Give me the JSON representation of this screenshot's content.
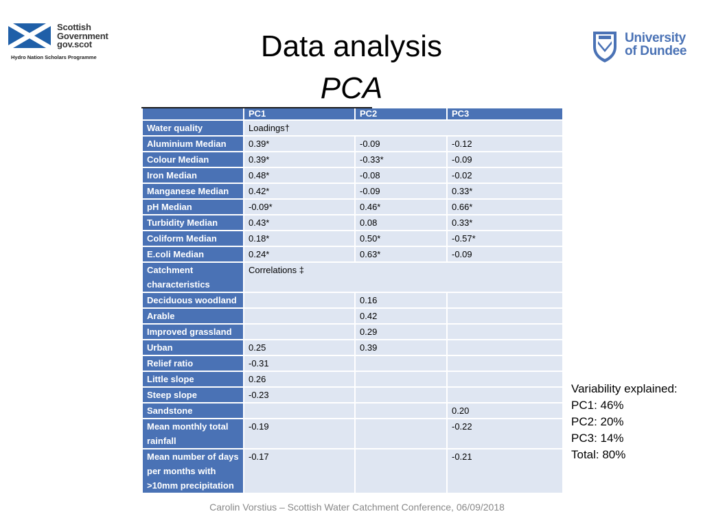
{
  "logos": {
    "left": {
      "lines": [
        "Scottish",
        "Government",
        "gov.scot"
      ],
      "programme": "Hydro Nation Scholars Programme"
    },
    "right": {
      "lines": [
        "University",
        "of Dundee"
      ]
    }
  },
  "title": {
    "main": "Data analysis",
    "sub": "PCA"
  },
  "table": {
    "header": [
      "",
      "PC1",
      "PC2",
      "PC3"
    ],
    "rows": [
      {
        "label": "Water quality",
        "span": "Loadings†"
      },
      {
        "label": "Aluminium Median",
        "cells": [
          "0.39*",
          "-0.09",
          "-0.12"
        ]
      },
      {
        "label": "Colour Median",
        "cells": [
          "0.39*",
          "-0.33*",
          "-0.09"
        ]
      },
      {
        "label": "Iron Median",
        "cells": [
          "0.48*",
          "-0.08",
          "-0.02"
        ]
      },
      {
        "label": "Manganese Median",
        "cells": [
          "0.42*",
          "-0.09",
          "0.33*"
        ]
      },
      {
        "label": "pH Median",
        "cells": [
          "-0.09*",
          "0.46*",
          "0.66*"
        ]
      },
      {
        "label": "Turbidity Median",
        "cells": [
          "0.43*",
          "0.08",
          "0.33*"
        ]
      },
      {
        "label": "Coliform Median",
        "cells": [
          "0.18*",
          "0.50*",
          "-0.57*"
        ]
      },
      {
        "label": "E.coli Median",
        "cells": [
          "0.24*",
          "0.63*",
          "-0.09"
        ]
      },
      {
        "label": "Catchment characteristics",
        "span": "Correlations ‡"
      },
      {
        "label": "Deciduous woodland",
        "cells": [
          "",
          "0.16",
          ""
        ]
      },
      {
        "label": "Arable",
        "cells": [
          "",
          "0.42",
          ""
        ]
      },
      {
        "label": "Improved grassland",
        "cells": [
          "",
          "0.29",
          ""
        ]
      },
      {
        "label": "Urban",
        "cells": [
          "0.25",
          "0.39",
          ""
        ]
      },
      {
        "label": "Relief ratio",
        "cells": [
          "-0.31",
          "",
          ""
        ]
      },
      {
        "label": "Little slope",
        "cells": [
          "0.26",
          "",
          ""
        ]
      },
      {
        "label": "Steep slope",
        "cells": [
          "-0.23",
          "",
          ""
        ]
      },
      {
        "label": "Sandstone",
        "cells": [
          "",
          "",
          "0.20"
        ]
      },
      {
        "label": "Mean monthly total rainfall",
        "cells": [
          "-0.19",
          "",
          "-0.22"
        ]
      },
      {
        "label": "Mean number of days per months with >10mm precipitation",
        "cells": [
          "-0.17",
          "",
          "-0.21"
        ]
      }
    ]
  },
  "variability": {
    "heading": "Variability explained:",
    "lines": [
      "PC1: 46%",
      "PC2: 20%",
      "PC3: 14%",
      "Total: 80%"
    ]
  },
  "footer": "Carolin Vorstius – Scottish Water Catchment Conference, 06/09/2018"
}
